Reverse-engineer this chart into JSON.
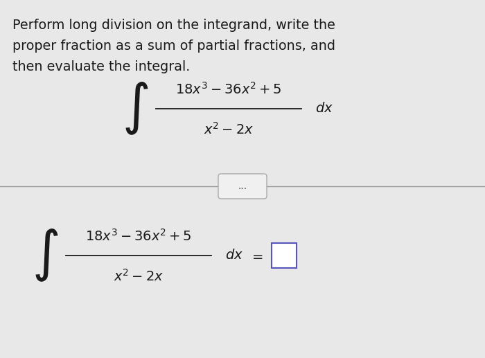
{
  "bg_color": "#e8e8e8",
  "text_color": "#1a1a1a",
  "line1": "Perform long division on the integrand, write the",
  "line2": "proper fraction as a sum of partial fractions, and",
  "line3": "then evaluate the integral.",
  "sep_color": "#999999",
  "btn_text": "...",
  "btn_bg": "#f0f0f0",
  "btn_edge": "#aaaaaa",
  "box_edge": "#5555bb",
  "box_face": "#ffffff"
}
